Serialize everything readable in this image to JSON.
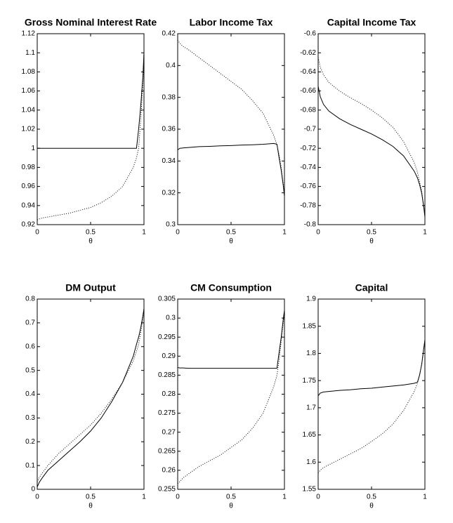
{
  "chart_data": [
    {
      "type": "line",
      "title": "Gross Nominal Interest Rate",
      "xlabel": "θ",
      "x": [
        0,
        0.02,
        0.05,
        0.1,
        0.2,
        0.3,
        0.4,
        0.5,
        0.6,
        0.7,
        0.8,
        0.9,
        0.93,
        0.95,
        0.97,
        0.99,
        1
      ],
      "xlim": [
        0,
        1
      ],
      "xticks": [
        0,
        0.5,
        1
      ],
      "ylim": [
        0.92,
        1.12
      ],
      "yticks": [
        0.92,
        0.94,
        0.96,
        0.98,
        1,
        1.02,
        1.04,
        1.06,
        1.08,
        1.1,
        1.12
      ],
      "series": [
        {
          "color": "#000000",
          "dash": "solid",
          "values": [
            1,
            1,
            1,
            1,
            1,
            1,
            1,
            1,
            1,
            1,
            1,
            1,
            1,
            1.02,
            1.045,
            1.075,
            1.1
          ]
        },
        {
          "color": "#000000",
          "dash": "dotted",
          "values": [
            0.925,
            0.926,
            0.927,
            0.928,
            0.93,
            0.932,
            0.935,
            0.938,
            0.943,
            0.95,
            0.96,
            0.98,
            0.99,
            1,
            1.03,
            1.07,
            1.1
          ]
        }
      ]
    },
    {
      "type": "line",
      "title": "Labor Income Tax",
      "xlabel": "θ",
      "x": [
        0,
        0.02,
        0.05,
        0.1,
        0.2,
        0.3,
        0.4,
        0.5,
        0.6,
        0.7,
        0.8,
        0.9,
        0.93,
        0.95,
        0.97,
        0.99,
        1
      ],
      "xlim": [
        0,
        1
      ],
      "xticks": [
        0,
        0.5,
        1
      ],
      "ylim": [
        0.3,
        0.42
      ],
      "yticks": [
        0.3,
        0.32,
        0.34,
        0.36,
        0.38,
        0.4,
        0.42
      ],
      "series": [
        {
          "color": "#000000",
          "dash": "solid",
          "values": [
            0.347,
            0.348,
            0.3482,
            0.3485,
            0.349,
            0.3492,
            0.3495,
            0.3497,
            0.35,
            0.3502,
            0.3505,
            0.351,
            0.3505,
            0.342,
            0.334,
            0.324,
            0.318
          ]
        },
        {
          "color": "#000000",
          "dash": "dotted",
          "values": [
            0.416,
            0.414,
            0.412,
            0.41,
            0.405,
            0.4,
            0.395,
            0.39,
            0.385,
            0.378,
            0.37,
            0.356,
            0.35,
            0.344,
            0.336,
            0.325,
            0.318
          ]
        }
      ]
    },
    {
      "type": "line",
      "title": "Capital Income Tax",
      "xlabel": "θ",
      "x": [
        0,
        0.02,
        0.05,
        0.1,
        0.2,
        0.3,
        0.4,
        0.5,
        0.6,
        0.7,
        0.8,
        0.9,
        0.93,
        0.95,
        0.97,
        0.99,
        1
      ],
      "xlim": [
        0,
        1
      ],
      "xticks": [
        0,
        0.5,
        1
      ],
      "ylim": [
        -0.8,
        -0.6
      ],
      "yticks": [
        -0.8,
        -0.78,
        -0.76,
        -0.74,
        -0.72,
        -0.7,
        -0.68,
        -0.66,
        -0.64,
        -0.62,
        -0.6
      ],
      "series": [
        {
          "color": "#000000",
          "dash": "solid",
          "values": [
            -0.655,
            -0.666,
            -0.674,
            -0.681,
            -0.689,
            -0.695,
            -0.7,
            -0.705,
            -0.711,
            -0.718,
            -0.728,
            -0.744,
            -0.751,
            -0.758,
            -0.767,
            -0.782,
            -0.792
          ]
        },
        {
          "color": "#000000",
          "dash": "dotted",
          "values": [
            -0.625,
            -0.635,
            -0.643,
            -0.651,
            -0.66,
            -0.667,
            -0.673,
            -0.68,
            -0.688,
            -0.698,
            -0.713,
            -0.735,
            -0.745,
            -0.755,
            -0.765,
            -0.782,
            -0.792
          ]
        }
      ]
    },
    {
      "type": "line",
      "title": "DM Output",
      "xlabel": "θ",
      "x": [
        0,
        0.02,
        0.05,
        0.1,
        0.2,
        0.3,
        0.4,
        0.5,
        0.6,
        0.7,
        0.8,
        0.9,
        0.93,
        0.95,
        0.97,
        0.99,
        1
      ],
      "xlim": [
        0,
        1
      ],
      "xticks": [
        0,
        0.5,
        1
      ],
      "ylim": [
        0,
        0.8
      ],
      "yticks": [
        0,
        0.1,
        0.2,
        0.3,
        0.4,
        0.5,
        0.6,
        0.7,
        0.8
      ],
      "series": [
        {
          "color": "#000000",
          "dash": "solid",
          "values": [
            0.01,
            0.03,
            0.05,
            0.08,
            0.12,
            0.16,
            0.2,
            0.245,
            0.3,
            0.37,
            0.45,
            0.56,
            0.61,
            0.64,
            0.68,
            0.73,
            0.76
          ]
        },
        {
          "color": "#000000",
          "dash": "dotted",
          "values": [
            0.03,
            0.05,
            0.07,
            0.1,
            0.15,
            0.19,
            0.23,
            0.27,
            0.32,
            0.38,
            0.45,
            0.54,
            0.58,
            0.61,
            0.66,
            0.72,
            0.76
          ]
        }
      ]
    },
    {
      "type": "line",
      "title": "CM Consumption",
      "xlabel": "θ",
      "x": [
        0,
        0.02,
        0.05,
        0.1,
        0.2,
        0.3,
        0.4,
        0.5,
        0.6,
        0.7,
        0.8,
        0.9,
        0.93,
        0.95,
        0.97,
        0.99,
        1
      ],
      "xlim": [
        0,
        1
      ],
      "xticks": [
        0,
        0.5,
        1
      ],
      "ylim": [
        0.255,
        0.305
      ],
      "yticks": [
        0.255,
        0.26,
        0.265,
        0.27,
        0.275,
        0.28,
        0.285,
        0.29,
        0.295,
        0.3,
        0.305
      ],
      "series": [
        {
          "color": "#000000",
          "dash": "solid",
          "values": [
            0.287,
            0.2869,
            0.2869,
            0.2868,
            0.2868,
            0.2868,
            0.2868,
            0.2868,
            0.2868,
            0.2868,
            0.2868,
            0.2868,
            0.2868,
            0.291,
            0.295,
            0.3,
            0.302
          ]
        },
        {
          "color": "#000000",
          "dash": "dotted",
          "values": [
            0.2565,
            0.257,
            0.258,
            0.259,
            0.261,
            0.2625,
            0.264,
            0.266,
            0.268,
            0.271,
            0.275,
            0.282,
            0.285,
            0.289,
            0.294,
            0.299,
            0.302
          ]
        }
      ]
    },
    {
      "type": "line",
      "title": "Capital",
      "xlabel": "θ",
      "x": [
        0,
        0.02,
        0.05,
        0.1,
        0.2,
        0.3,
        0.4,
        0.5,
        0.6,
        0.7,
        0.8,
        0.9,
        0.93,
        0.95,
        0.97,
        0.99,
        1
      ],
      "xlim": [
        0,
        1
      ],
      "xticks": [
        0,
        0.5,
        1
      ],
      "ylim": [
        1.55,
        1.9
      ],
      "yticks": [
        1.55,
        1.6,
        1.65,
        1.7,
        1.75,
        1.8,
        1.85,
        1.9
      ],
      "series": [
        {
          "color": "#000000",
          "dash": "solid",
          "values": [
            1.722,
            1.727,
            1.729,
            1.73,
            1.732,
            1.733,
            1.735,
            1.736,
            1.738,
            1.74,
            1.742,
            1.745,
            1.747,
            1.76,
            1.78,
            1.81,
            1.825
          ]
        },
        {
          "color": "#000000",
          "dash": "dotted",
          "values": [
            1.58,
            1.585,
            1.59,
            1.595,
            1.605,
            1.615,
            1.625,
            1.638,
            1.652,
            1.67,
            1.695,
            1.73,
            1.745,
            1.76,
            1.78,
            1.81,
            1.825
          ]
        }
      ]
    }
  ]
}
